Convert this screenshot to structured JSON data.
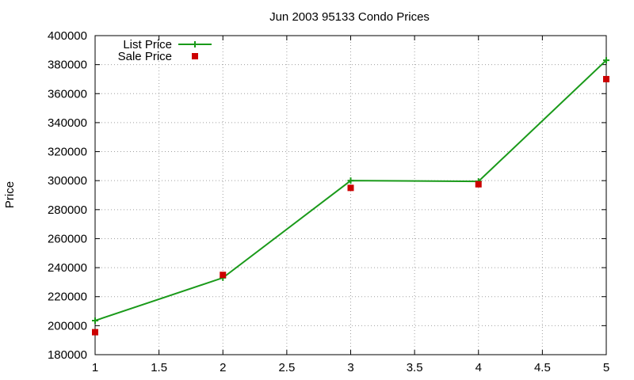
{
  "chart_data": {
    "type": "line",
    "title": "Jun 2003 95133 Condo Prices",
    "xlabel": "",
    "ylabel": "Price",
    "xlim": [
      1,
      5
    ],
    "ylim": [
      180000,
      400000
    ],
    "x_ticks": [
      "1",
      "1.5",
      "2",
      "2.5",
      "3",
      "3.5",
      "4",
      "4.5",
      "5"
    ],
    "y_ticks": [
      "180000",
      "200000",
      "220000",
      "240000",
      "260000",
      "280000",
      "300000",
      "320000",
      "340000",
      "360000",
      "380000",
      "400000"
    ],
    "grid": true,
    "legend_position": "top-left",
    "series": [
      {
        "name": "List Price",
        "style": "line-with-plus-markers",
        "color": "#1a9a1a",
        "x": [
          1,
          2,
          3,
          4,
          5
        ],
        "y": [
          203500,
          233000,
          300000,
          299500,
          383000
        ]
      },
      {
        "name": "Sale Price",
        "style": "square-markers",
        "color": "#cc0000",
        "x": [
          1,
          2,
          3,
          4,
          5
        ],
        "y": [
          195500,
          235000,
          295000,
          297500,
          370000
        ]
      }
    ]
  }
}
